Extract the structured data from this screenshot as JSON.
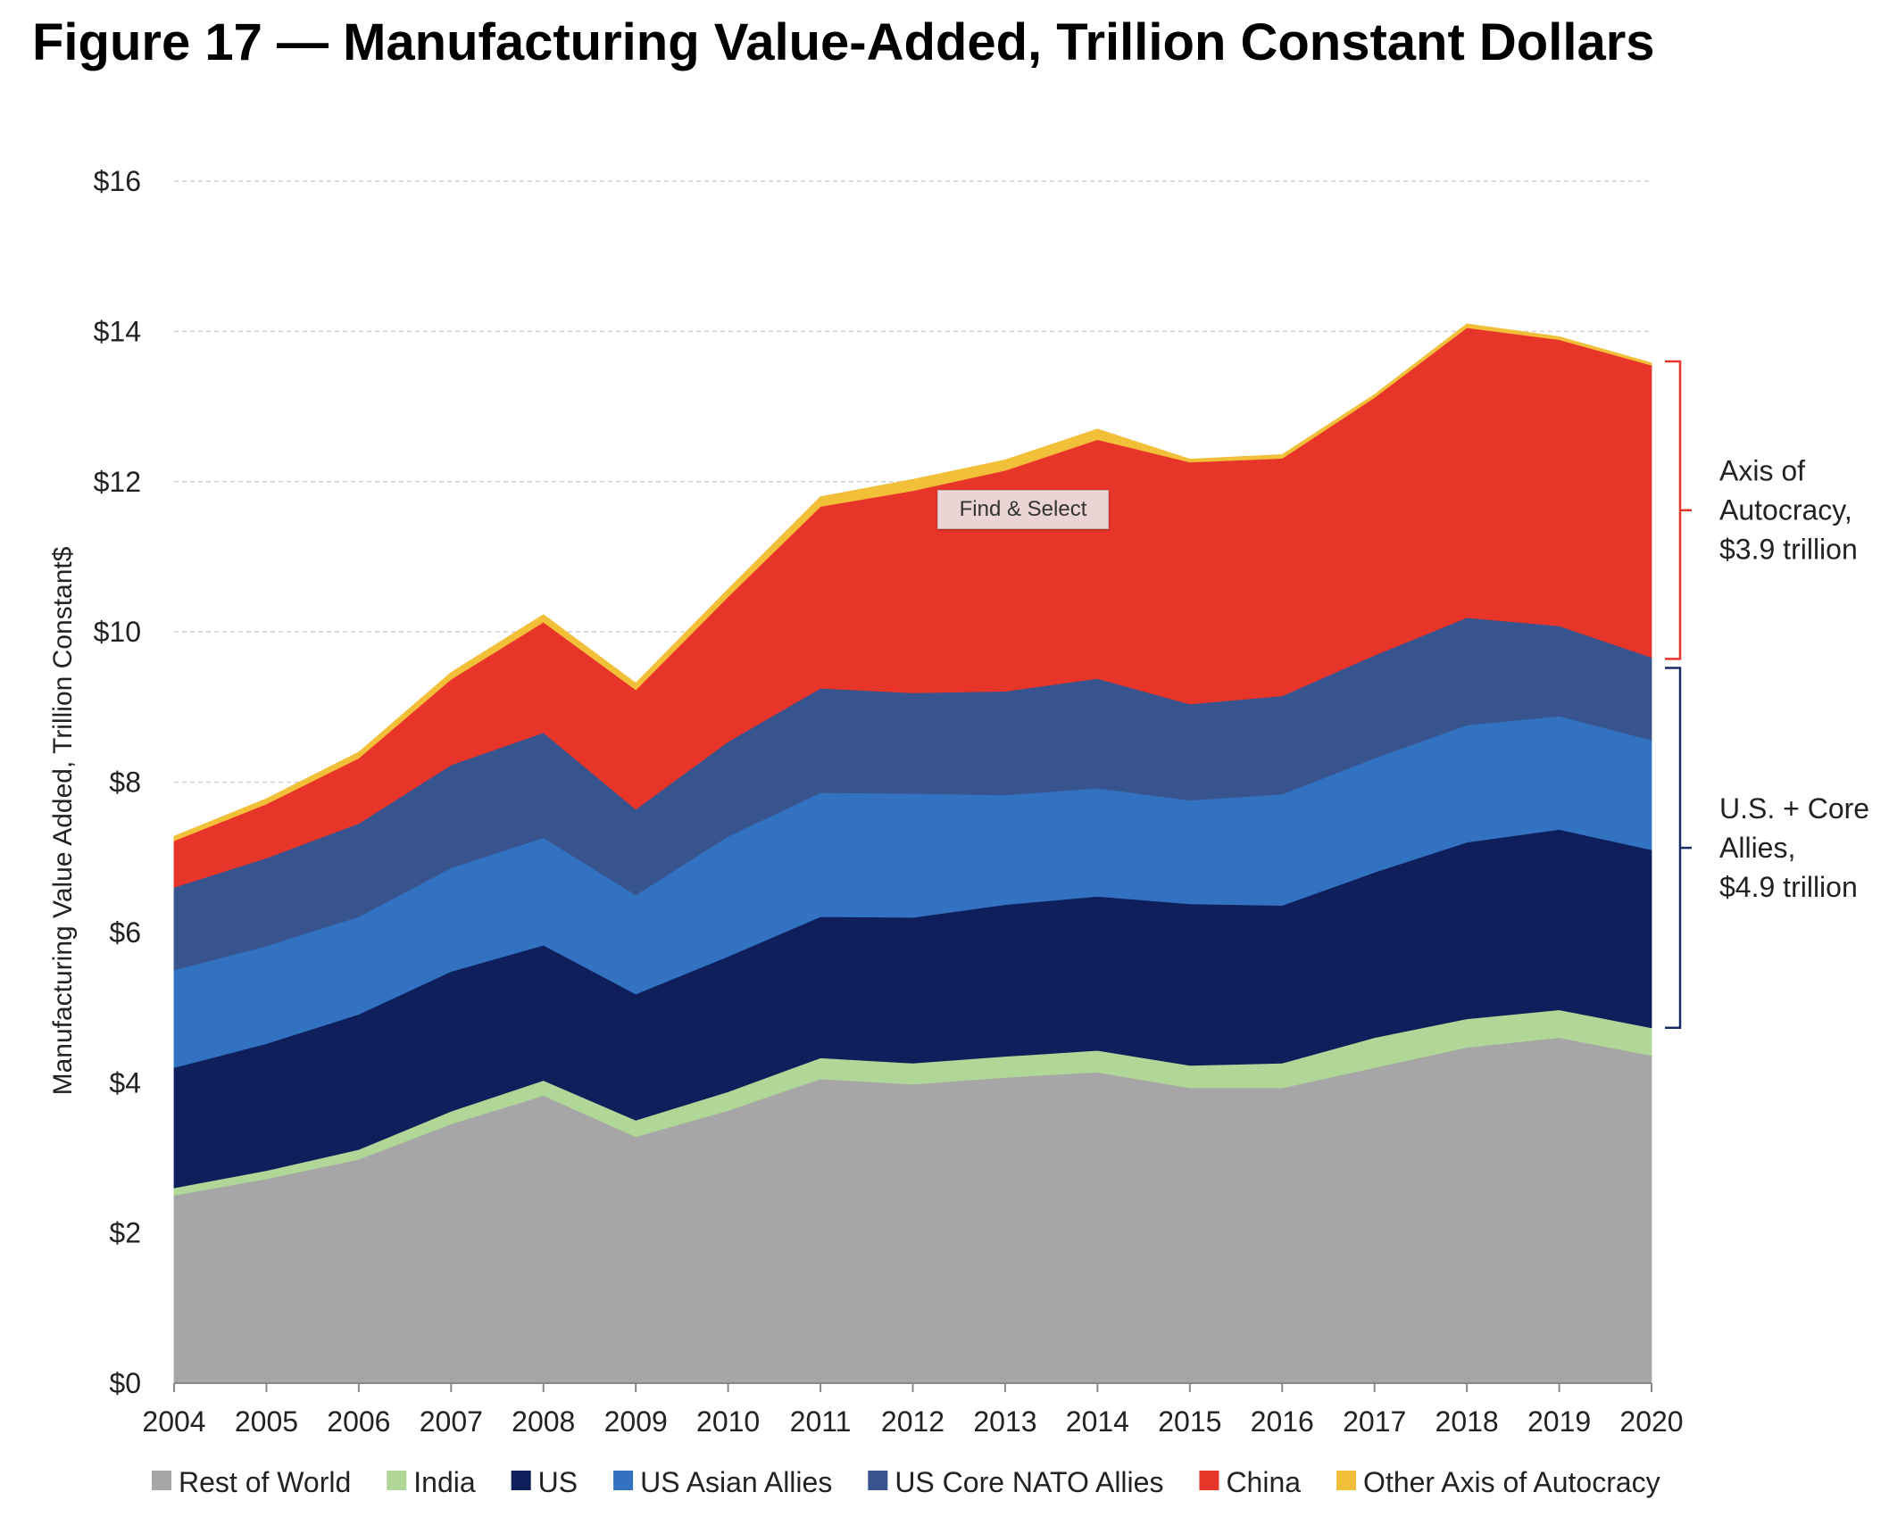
{
  "title": "Figure 17 — Manufacturing Value-Added, Trillion Constant Dollars",
  "tooltip": "Find & Select",
  "chart_data": {
    "type": "area",
    "stacked": true,
    "x": [
      2004,
      2005,
      2006,
      2007,
      2008,
      2009,
      2010,
      2011,
      2012,
      2013,
      2014,
      2015,
      2016,
      2017,
      2018,
      2019,
      2020
    ],
    "ylim": [
      0,
      16
    ],
    "yticks": [
      0,
      2,
      4,
      6,
      8,
      10,
      12,
      14,
      16
    ],
    "ytick_labels": [
      "$0",
      "$2",
      "$4",
      "$6",
      "$8",
      "$10",
      "$12",
      "$14",
      "$16"
    ],
    "ylabel": "Manufacturing Value Added, Trillion Constant$",
    "xlabel": "",
    "grid": true,
    "legend_position": "bottom",
    "series": [
      {
        "name": "Rest of World",
        "color": "#a6a6a6",
        "values": [
          2.5,
          2.72,
          2.98,
          3.45,
          3.83,
          3.28,
          3.63,
          4.05,
          3.98,
          4.07,
          4.14,
          3.93,
          3.93,
          4.2,
          4.47,
          4.6,
          4.36
        ]
      },
      {
        "name": "India",
        "color": "#b0d698",
        "values": [
          0.1,
          0.11,
          0.13,
          0.17,
          0.2,
          0.22,
          0.25,
          0.28,
          0.28,
          0.28,
          0.29,
          0.3,
          0.33,
          0.4,
          0.38,
          0.37,
          0.37
        ]
      },
      {
        "name": "US",
        "color": "#0e1f5b",
        "values": [
          1.6,
          1.69,
          1.8,
          1.86,
          1.8,
          1.68,
          1.8,
          1.88,
          1.94,
          2.02,
          2.05,
          2.15,
          2.1,
          2.2,
          2.35,
          2.4,
          2.37
        ]
      },
      {
        "name": "US Asian Allies",
        "color": "#3272c1",
        "values": [
          1.3,
          1.3,
          1.3,
          1.38,
          1.43,
          1.32,
          1.6,
          1.65,
          1.65,
          1.46,
          1.44,
          1.38,
          1.48,
          1.52,
          1.56,
          1.51,
          1.46
        ]
      },
      {
        "name": "US Core NATO Allies",
        "color": "#38548f",
        "values": [
          1.1,
          1.17,
          1.24,
          1.37,
          1.4,
          1.14,
          1.26,
          1.39,
          1.34,
          1.38,
          1.46,
          1.28,
          1.31,
          1.37,
          1.43,
          1.2,
          1.1
        ]
      },
      {
        "name": "China",
        "color": "#e8352a",
        "values": [
          0.62,
          0.72,
          0.87,
          1.14,
          1.47,
          1.59,
          1.93,
          2.42,
          2.69,
          2.94,
          3.18,
          3.22,
          3.16,
          3.43,
          3.86,
          3.81,
          3.89
        ]
      },
      {
        "name": "Other Axis of Autocracy",
        "color": "#f2c038",
        "values": [
          0.06,
          0.07,
          0.08,
          0.09,
          0.1,
          0.09,
          0.1,
          0.13,
          0.15,
          0.14,
          0.14,
          0.04,
          0.05,
          0.04,
          0.05,
          0.04,
          0.03
        ]
      }
    ],
    "annotations": [
      {
        "label_lines": [
          "Axis of",
          "Autocracy,",
          "$3.9 trillion"
        ],
        "color": "#e8352a",
        "range": [
          9.64,
          13.6
        ]
      },
      {
        "label_lines": [
          "U.S. + Core",
          "Allies,",
          "$4.9 trillion"
        ],
        "color": "#1a2c66",
        "range": [
          4.73,
          9.52
        ]
      }
    ]
  }
}
